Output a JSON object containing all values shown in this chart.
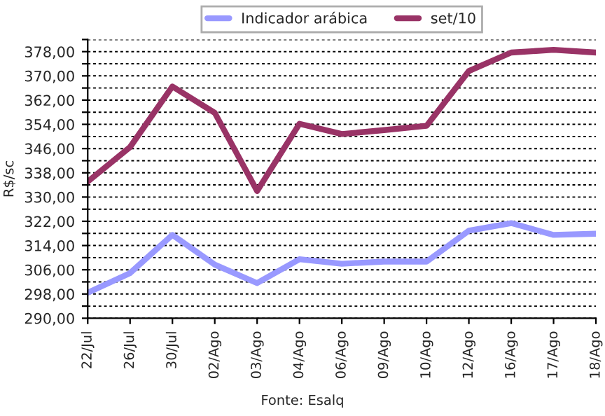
{
  "chart_data": {
    "type": "line",
    "ylabel": "R$/sc",
    "annotations": [
      "Fonte: Esalq"
    ],
    "categories": [
      "22/Jul",
      "26/Jul",
      "30/Jul",
      "02/Ago",
      "03/Ago",
      "04/Ago",
      "06/Ago",
      "09/Ago",
      "10/Ago",
      "12/Ago",
      "16/Ago",
      "17/Ago",
      "18/Ago"
    ],
    "series": [
      {
        "name": "Indicador arábica",
        "color": "#9999ff",
        "values": [
          298.4,
          304.9,
          317.5,
          307.7,
          301.6,
          309.5,
          308,
          308.7,
          308.7,
          318.9,
          321.4,
          317.5,
          317.9
        ]
      },
      {
        "name": "set/10",
        "color": "#993366",
        "values": [
          335.1,
          346.5,
          366.5,
          357.8,
          332,
          354.2,
          350.8,
          352.1,
          353.5,
          371.6,
          377.7,
          378.6,
          377.7
        ]
      }
    ],
    "ylim": [
      290,
      382
    ],
    "yticks": [
      {
        "value": 290,
        "label": "290,00"
      },
      {
        "value": 294,
        "label": null
      },
      {
        "value": 298,
        "label": "298,00"
      },
      {
        "value": 302,
        "label": null
      },
      {
        "value": 306,
        "label": "306,00"
      },
      {
        "value": 310,
        "label": null
      },
      {
        "value": 314,
        "label": "314,00"
      },
      {
        "value": 318,
        "label": null
      },
      {
        "value": 322,
        "label": "322,00"
      },
      {
        "value": 326,
        "label": null
      },
      {
        "value": 330,
        "label": "330,00"
      },
      {
        "value": 334,
        "label": null
      },
      {
        "value": 338,
        "label": "338,00"
      },
      {
        "value": 342,
        "label": null
      },
      {
        "value": 346,
        "label": "346,00"
      },
      {
        "value": 350,
        "label": null
      },
      {
        "value": 354,
        "label": "354,00"
      },
      {
        "value": 358,
        "label": null
      },
      {
        "value": 362,
        "label": "362,00"
      },
      {
        "value": 366,
        "label": null
      },
      {
        "value": 370,
        "label": "370,00"
      },
      {
        "value": 374,
        "label": null
      },
      {
        "value": 378,
        "label": "378,00"
      },
      {
        "value": 382,
        "label": null
      }
    ],
    "grid": "y",
    "legend": "top",
    "marker": "none",
    "line_style": "solid"
  }
}
